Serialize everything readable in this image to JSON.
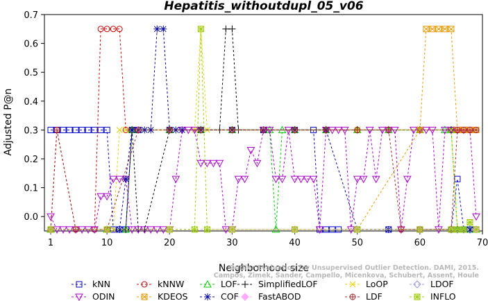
{
  "chart_data": {
    "type": "line",
    "title": "Hepatitis_withoutdupl_05_v06",
    "xlabel": "Neighborhood size",
    "ylabel": "Adjusted P@n",
    "xlim": [
      0,
      70
    ],
    "ylim": [
      -0.05,
      0.7
    ],
    "xticks": [
      1,
      10,
      20,
      30,
      40,
      50,
      60,
      70
    ],
    "yticks": [
      0.0,
      0.1,
      0.2,
      0.3,
      0.4,
      0.5,
      0.6,
      0.7
    ],
    "ytick_labels": [
      "0.0",
      "0.1",
      "0.2",
      "0.3",
      "0.4",
      "0.5",
      "0.6",
      "0.7"
    ],
    "grid": false,
    "legend_position": "bottom",
    "series": [
      {
        "name": "kNN",
        "color": "#0000cc",
        "marker": "square",
        "x": [
          1,
          2,
          3,
          4,
          5,
          6,
          7,
          8,
          9,
          10,
          11,
          12,
          13,
          14,
          15,
          20,
          25,
          30,
          35,
          40,
          43,
          44,
          45,
          46,
          47,
          50,
          55,
          60,
          65,
          66,
          67,
          68,
          69
        ],
        "y": [
          0.3,
          0.3,
          0.3,
          0.3,
          0.3,
          0.3,
          0.3,
          0.3,
          0.3,
          0.3,
          -0.045,
          -0.045,
          -0.045,
          0.3,
          0.3,
          0.3,
          0.3,
          0.3,
          0.3,
          0.3,
          0.3,
          -0.045,
          -0.045,
          -0.045,
          -0.045,
          -0.045,
          -0.045,
          -0.045,
          -0.045,
          0.13,
          -0.045,
          -0.045,
          -0.045
        ]
      },
      {
        "name": "kNNW",
        "color": "#cc0000",
        "marker": "circle",
        "x": [
          1,
          2,
          5,
          8,
          9,
          10,
          11,
          12,
          13,
          14,
          20,
          30,
          40,
          50,
          60,
          65,
          66,
          67,
          68,
          69
        ],
        "y": [
          -0.045,
          0.3,
          -0.045,
          -0.045,
          0.65,
          0.65,
          0.65,
          0.65,
          0.3,
          0.3,
          0.3,
          0.3,
          0.3,
          0.3,
          0.3,
          0.3,
          0.3,
          0.3,
          0.3,
          0.3
        ]
      },
      {
        "name": "LOF",
        "color": "#00cc00",
        "marker": "triangle",
        "x": [
          1,
          10,
          13,
          14,
          20,
          25,
          30,
          36,
          37,
          38,
          40,
          45,
          50,
          55,
          60,
          64,
          65,
          66,
          67,
          68,
          69
        ],
        "y": [
          -0.045,
          -0.045,
          -0.045,
          0.3,
          0.3,
          0.3,
          0.3,
          0.3,
          -0.045,
          0.3,
          0.3,
          0.3,
          0.3,
          0.3,
          0.3,
          0.3,
          0.3,
          -0.045,
          -0.045,
          -0.045,
          -0.045
        ]
      },
      {
        "name": "SimplifiedLOF",
        "color": "#000000",
        "marker": "plus",
        "x": [
          1,
          13,
          14,
          15,
          16,
          20,
          25,
          28,
          29,
          30,
          31,
          35,
          40,
          45,
          50,
          55,
          60,
          65
        ],
        "y": [
          -0.045,
          -0.045,
          0.3,
          -0.045,
          -0.045,
          0.3,
          0.3,
          0.3,
          0.65,
          0.65,
          0.3,
          0.3,
          0.3,
          0.3,
          0.3,
          0.3,
          0.3,
          0.3
        ]
      },
      {
        "name": "LoOP",
        "color": "#e6d000",
        "marker": "cross",
        "x": [
          1,
          10,
          11,
          12,
          13,
          20,
          24,
          25,
          26,
          30,
          40,
          50,
          60,
          65,
          66,
          67,
          68,
          69
        ],
        "y": [
          -0.045,
          -0.045,
          -0.045,
          0.3,
          0.3,
          0.3,
          0.3,
          0.65,
          0.3,
          0.3,
          0.3,
          0.3,
          0.3,
          0.3,
          -0.045,
          -0.045,
          -0.045,
          -0.045
        ]
      },
      {
        "name": "LDOF",
        "color": "#9999dd",
        "marker": "diamond",
        "x": [
          1,
          10,
          20,
          30,
          40,
          50,
          60,
          65,
          66,
          67,
          68,
          69
        ],
        "y": [
          -0.045,
          -0.045,
          -0.045,
          -0.045,
          -0.045,
          -0.045,
          -0.045,
          -0.045,
          -0.045,
          -0.045,
          -0.045,
          -0.045
        ]
      },
      {
        "name": "ODIN",
        "color": "#aa00cc",
        "marker": "triangle-down",
        "x": [
          1,
          2,
          3,
          4,
          5,
          6,
          7,
          8,
          9,
          10,
          11,
          12,
          13,
          14,
          15,
          16,
          17,
          18,
          19,
          20,
          21,
          22,
          23,
          24,
          25,
          26,
          27,
          28,
          29,
          30,
          31,
          32,
          33,
          34,
          35,
          36,
          37,
          38,
          39,
          40,
          41,
          42,
          43,
          44,
          45,
          46,
          47,
          48,
          49,
          50,
          51,
          52,
          53,
          54,
          55,
          56,
          57,
          58,
          59,
          60,
          61,
          62,
          63,
          64,
          65,
          66,
          67,
          68,
          69
        ],
        "y": [
          0.0,
          -0.045,
          -0.045,
          -0.045,
          -0.045,
          -0.045,
          -0.045,
          -0.045,
          0.07,
          0.07,
          0.13,
          0.13,
          0.13,
          -0.045,
          -0.045,
          -0.045,
          -0.045,
          -0.045,
          -0.045,
          -0.045,
          0.13,
          0.3,
          0.3,
          0.3,
          0.185,
          0.185,
          0.185,
          0.185,
          -0.045,
          -0.045,
          0.13,
          0.13,
          0.23,
          0.185,
          0.3,
          0.3,
          0.13,
          0.13,
          0.3,
          0.13,
          0.13,
          0.13,
          0.13,
          -0.045,
          0.3,
          0.3,
          0.3,
          0.3,
          -0.045,
          0.13,
          0.13,
          0.3,
          0.13,
          0.3,
          0.3,
          0.3,
          -0.045,
          0.13,
          0.3,
          0.3,
          0.3,
          0.3,
          -0.045,
          0.3,
          0.3,
          0.3,
          0.3,
          0.3,
          0.0
        ]
      },
      {
        "name": "KDEOS",
        "color": "#e69900",
        "marker": "square-x",
        "x": [
          1,
          10,
          20,
          30,
          40,
          50,
          60,
          61,
          62,
          63,
          64,
          65,
          66,
          67,
          68,
          69
        ],
        "y": [
          -0.045,
          -0.045,
          -0.045,
          -0.045,
          -0.045,
          -0.045,
          0.3,
          0.65,
          0.65,
          0.65,
          0.65,
          0.65,
          0.3,
          0.3,
          0.3,
          0.3
        ]
      },
      {
        "name": "COF",
        "color": "#000099",
        "marker": "star",
        "x": [
          1,
          10,
          12,
          13,
          14,
          15,
          16,
          17,
          18,
          19,
          20,
          21,
          22,
          25,
          30,
          35,
          40,
          45,
          50,
          55,
          60,
          65,
          66,
          67,
          68,
          69
        ],
        "y": [
          -0.045,
          -0.045,
          -0.045,
          0.13,
          0.3,
          0.3,
          0.3,
          0.3,
          0.65,
          0.65,
          0.3,
          0.3,
          0.3,
          0.3,
          0.3,
          0.3,
          0.3,
          0.3,
          -0.045,
          -0.045,
          -0.045,
          -0.045,
          -0.045,
          -0.045,
          -0.045,
          -0.045
        ]
      },
      {
        "name": "FastABOD",
        "color": "#ffaaff",
        "marker": "diamond-filled",
        "x": [
          1,
          10,
          20,
          30,
          40,
          50,
          60,
          69
        ],
        "y": [
          -0.045,
          -0.045,
          -0.045,
          -0.045,
          -0.045,
          -0.045,
          -0.045,
          -0.045
        ]
      },
      {
        "name": "LDF",
        "color": "#aa2222",
        "marker": "circle-plus",
        "x": [
          1,
          2,
          5,
          10,
          15,
          20,
          25,
          30,
          35,
          40,
          45,
          50,
          55,
          57,
          60,
          65,
          66,
          67,
          68,
          69
        ],
        "y": [
          -0.045,
          0.3,
          -0.045,
          -0.045,
          0.3,
          0.3,
          0.3,
          0.3,
          0.3,
          0.3,
          0.3,
          0.3,
          0.3,
          -0.045,
          -0.045,
          -0.045,
          0.3,
          0.3,
          0.3,
          0.3
        ]
      },
      {
        "name": "INFLO",
        "color": "#99cc00",
        "marker": "square-star",
        "x": [
          1,
          10,
          20,
          24,
          25,
          26,
          30,
          40,
          50,
          60,
          65,
          66,
          67,
          68,
          69
        ],
        "y": [
          -0.045,
          -0.045,
          -0.045,
          -0.045,
          0.65,
          -0.045,
          -0.045,
          -0.045,
          -0.045,
          -0.045,
          -0.045,
          -0.045,
          -0.045,
          -0.02,
          -0.045
        ]
      }
    ],
    "legend_order": [
      "kNN",
      "kNNW",
      "LOF",
      "SimplifiedLOF",
      "LoOP",
      "LDOF",
      "ODIN",
      "KDEOS",
      "COF",
      "FastABOD",
      "LDF",
      "INFLO"
    ]
  },
  "watermark": {
    "line1": "Outlier Evaluation for Unsupervised Outlier Detection. DAMI, 2015.",
    "line2": "Campos, Zimek, Sander, Campello, Micenkova, Schubert, Assent, Houle"
  }
}
